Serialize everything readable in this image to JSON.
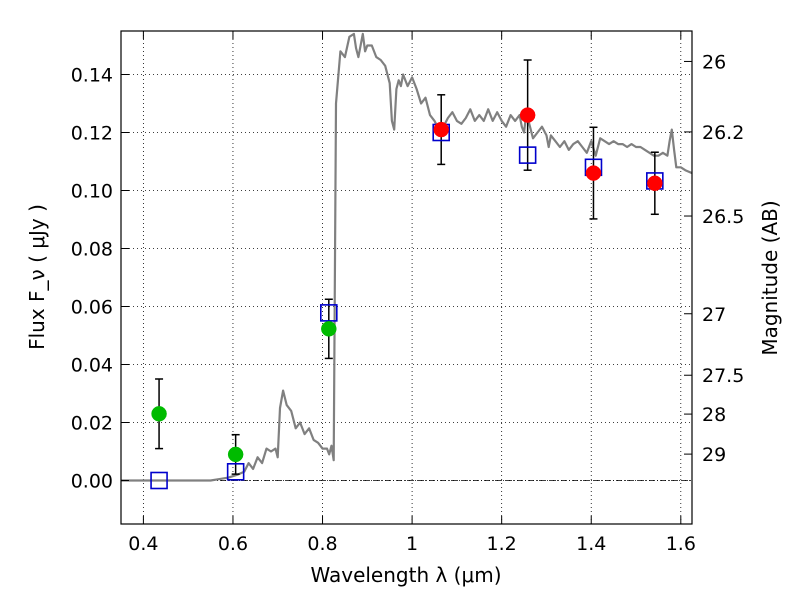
{
  "chart_data": {
    "type": "scatter",
    "xlabel": "Wavelength  λ (μm)",
    "ylabel": "Flux  F_ν  ( μJy )",
    "y2label": "Magnitude (AB)",
    "xlim": [
      0.35,
      1.625
    ],
    "ylim": [
      -0.015,
      0.155
    ],
    "grid": true,
    "x_ticks": [
      {
        "value": 0.4,
        "label": "0.4"
      },
      {
        "value": 0.6,
        "label": "0.6"
      },
      {
        "value": 0.8,
        "label": "0.8"
      },
      {
        "value": 1.0,
        "label": "1"
      },
      {
        "value": 1.2,
        "label": "1.2"
      },
      {
        "value": 1.4,
        "label": "1.4"
      },
      {
        "value": 1.6,
        "label": "1.6"
      }
    ],
    "y_ticks": [
      {
        "value": 0.0,
        "label": "0.00"
      },
      {
        "value": 0.02,
        "label": "0.02"
      },
      {
        "value": 0.04,
        "label": "0.04"
      },
      {
        "value": 0.06,
        "label": "0.06"
      },
      {
        "value": 0.08,
        "label": "0.08"
      },
      {
        "value": 0.1,
        "label": "0.10"
      },
      {
        "value": 0.12,
        "label": "0.12"
      },
      {
        "value": 0.14,
        "label": "0.14"
      }
    ],
    "y2_ticks": [
      {
        "label": "26",
        "flux": 0.1445
      },
      {
        "label": "26.2",
        "flux": 0.1202
      },
      {
        "label": "26.5",
        "flux": 0.0912
      },
      {
        "label": "27",
        "flux": 0.0575
      },
      {
        "label": "27.5",
        "flux": 0.0363
      },
      {
        "label": "28",
        "flux": 0.0229
      },
      {
        "label": "29",
        "flux": 0.0091
      }
    ],
    "model_spectrum": {
      "color": "#808080",
      "points": [
        [
          0.35,
          0.0
        ],
        [
          0.55,
          0.0
        ],
        [
          0.57,
          0.0005
        ],
        [
          0.59,
          0.001
        ],
        [
          0.61,
          0.002
        ],
        [
          0.625,
          0.003
        ],
        [
          0.635,
          0.006
        ],
        [
          0.645,
          0.004
        ],
        [
          0.655,
          0.008
        ],
        [
          0.665,
          0.006
        ],
        [
          0.675,
          0.011
        ],
        [
          0.685,
          0.01
        ],
        [
          0.695,
          0.011
        ],
        [
          0.7,
          0.008
        ],
        [
          0.705,
          0.025
        ],
        [
          0.712,
          0.031
        ],
        [
          0.72,
          0.026
        ],
        [
          0.73,
          0.024
        ],
        [
          0.74,
          0.018
        ],
        [
          0.75,
          0.02
        ],
        [
          0.76,
          0.016
        ],
        [
          0.77,
          0.018
        ],
        [
          0.78,
          0.014
        ],
        [
          0.79,
          0.013
        ],
        [
          0.8,
          0.011
        ],
        [
          0.81,
          0.011
        ],
        [
          0.815,
          0.009
        ],
        [
          0.82,
          0.012
        ],
        [
          0.825,
          0.007
        ],
        [
          0.83,
          0.13
        ],
        [
          0.84,
          0.148
        ],
        [
          0.85,
          0.146
        ],
        [
          0.86,
          0.153
        ],
        [
          0.87,
          0.154
        ],
        [
          0.875,
          0.149
        ],
        [
          0.88,
          0.146
        ],
        [
          0.89,
          0.154
        ],
        [
          0.895,
          0.148
        ],
        [
          0.9,
          0.15
        ],
        [
          0.91,
          0.15
        ],
        [
          0.92,
          0.146
        ],
        [
          0.93,
          0.145
        ],
        [
          0.94,
          0.143
        ],
        [
          0.95,
          0.137
        ],
        [
          0.955,
          0.124
        ],
        [
          0.96,
          0.121
        ],
        [
          0.965,
          0.135
        ],
        [
          0.97,
          0.138
        ],
        [
          0.975,
          0.136
        ],
        [
          0.98,
          0.14
        ],
        [
          0.99,
          0.136
        ],
        [
          1.0,
          0.139
        ],
        [
          1.01,
          0.135
        ],
        [
          1.02,
          0.13
        ],
        [
          1.03,
          0.132
        ],
        [
          1.04,
          0.126
        ],
        [
          1.05,
          0.124
        ],
        [
          1.06,
          0.121
        ],
        [
          1.07,
          0.122
        ],
        [
          1.08,
          0.125
        ],
        [
          1.09,
          0.127
        ],
        [
          1.1,
          0.124
        ],
        [
          1.11,
          0.123
        ],
        [
          1.12,
          0.125
        ],
        [
          1.13,
          0.128
        ],
        [
          1.14,
          0.124
        ],
        [
          1.15,
          0.126
        ],
        [
          1.16,
          0.124
        ],
        [
          1.17,
          0.128
        ],
        [
          1.18,
          0.124
        ],
        [
          1.19,
          0.127
        ],
        [
          1.2,
          0.124
        ],
        [
          1.21,
          0.122
        ],
        [
          1.22,
          0.126
        ],
        [
          1.23,
          0.124
        ],
        [
          1.24,
          0.126
        ],
        [
          1.245,
          0.122
        ],
        [
          1.25,
          0.12
        ],
        [
          1.255,
          0.127
        ],
        [
          1.26,
          0.124
        ],
        [
          1.27,
          0.118
        ],
        [
          1.28,
          0.12
        ],
        [
          1.29,
          0.122
        ],
        [
          1.3,
          0.119
        ],
        [
          1.305,
          0.115
        ],
        [
          1.31,
          0.119
        ],
        [
          1.32,
          0.117
        ],
        [
          1.33,
          0.115
        ],
        [
          1.34,
          0.117
        ],
        [
          1.35,
          0.114
        ],
        [
          1.36,
          0.116
        ],
        [
          1.37,
          0.117
        ],
        [
          1.38,
          0.115
        ],
        [
          1.39,
          0.113
        ],
        [
          1.4,
          0.117
        ],
        [
          1.41,
          0.112
        ],
        [
          1.42,
          0.118
        ],
        [
          1.43,
          0.117
        ],
        [
          1.44,
          0.116
        ],
        [
          1.45,
          0.117
        ],
        [
          1.46,
          0.116
        ],
        [
          1.47,
          0.116
        ],
        [
          1.48,
          0.115
        ],
        [
          1.49,
          0.116
        ],
        [
          1.5,
          0.115
        ],
        [
          1.51,
          0.115
        ],
        [
          1.52,
          0.114
        ],
        [
          1.53,
          0.113
        ],
        [
          1.54,
          0.112
        ],
        [
          1.55,
          0.112
        ],
        [
          1.56,
          0.113
        ],
        [
          1.57,
          0.112
        ],
        [
          1.575,
          0.117
        ],
        [
          1.58,
          0.121
        ],
        [
          1.585,
          0.114
        ],
        [
          1.59,
          0.108
        ],
        [
          1.6,
          0.108
        ],
        [
          1.61,
          0.107
        ],
        [
          1.625,
          0.106
        ]
      ]
    },
    "series": [
      {
        "marker": "circle",
        "color": "#00bb00",
        "points": [
          {
            "x": 0.435,
            "y": 0.023,
            "err": 0.012
          },
          {
            "x": 0.606,
            "y": 0.009,
            "err": 0.0068
          },
          {
            "x": 0.814,
            "y": 0.0523,
            "err": 0.0102
          }
        ]
      },
      {
        "marker": "circle",
        "color": "#ff0000",
        "points": [
          {
            "x": 1.065,
            "y": 0.121,
            "err": 0.012
          },
          {
            "x": 1.258,
            "y": 0.126,
            "err": 0.019
          },
          {
            "x": 1.405,
            "y": 0.106,
            "err": 0.0158
          },
          {
            "x": 1.542,
            "y": 0.1025,
            "err": 0.0107
          }
        ]
      },
      {
        "marker": "square",
        "color": "#0000cc",
        "points": [
          {
            "x": 0.435,
            "y": 0.0
          },
          {
            "x": 0.606,
            "y": 0.003
          },
          {
            "x": 0.814,
            "y": 0.0578
          },
          {
            "x": 1.065,
            "y": 0.12
          },
          {
            "x": 1.258,
            "y": 0.1122
          },
          {
            "x": 1.405,
            "y": 0.108
          },
          {
            "x": 1.542,
            "y": 0.1033
          }
        ]
      }
    ]
  }
}
